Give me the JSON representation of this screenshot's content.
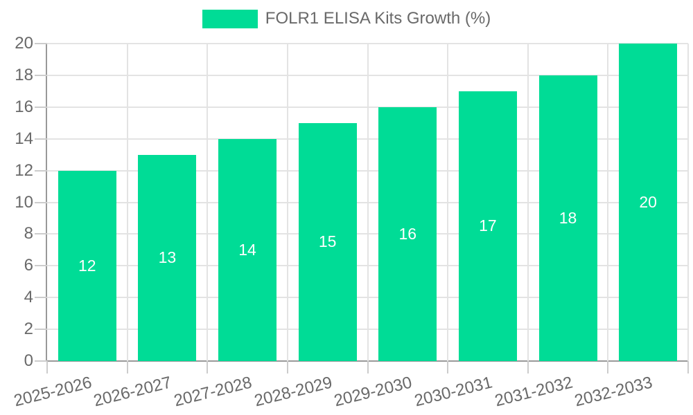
{
  "chart_data": {
    "type": "bar",
    "title": "FOLR1 ELISA Kits Growth (%)",
    "legend": [
      "FOLR1 ELISA Kits Growth (%)"
    ],
    "legend_position": "top-center",
    "categories": [
      "2025-2026",
      "2026-2027",
      "2027-2028",
      "2028-2029",
      "2029-2030",
      "2030-2031",
      "2031-2032",
      "2032-2033"
    ],
    "values": [
      12,
      13,
      14,
      15,
      16,
      17,
      18,
      20
    ],
    "bar_value_labels": [
      "12",
      "13",
      "14",
      "15",
      "16",
      "17",
      "18",
      "20"
    ],
    "xlabel": "",
    "ylabel": "",
    "ylim": [
      0,
      20
    ],
    "yticks": [
      0,
      2,
      4,
      6,
      8,
      10,
      12,
      14,
      16,
      18,
      20
    ],
    "grid": true,
    "x_label_rotation_deg": -14,
    "colors": {
      "bar": "#00DC96",
      "bar_label": "#FFFFFF",
      "axis": "#999999",
      "grid": "#E3E3E3",
      "tick": "#CCCCCC",
      "text": "#696969",
      "background": "#FFFFFF"
    }
  }
}
